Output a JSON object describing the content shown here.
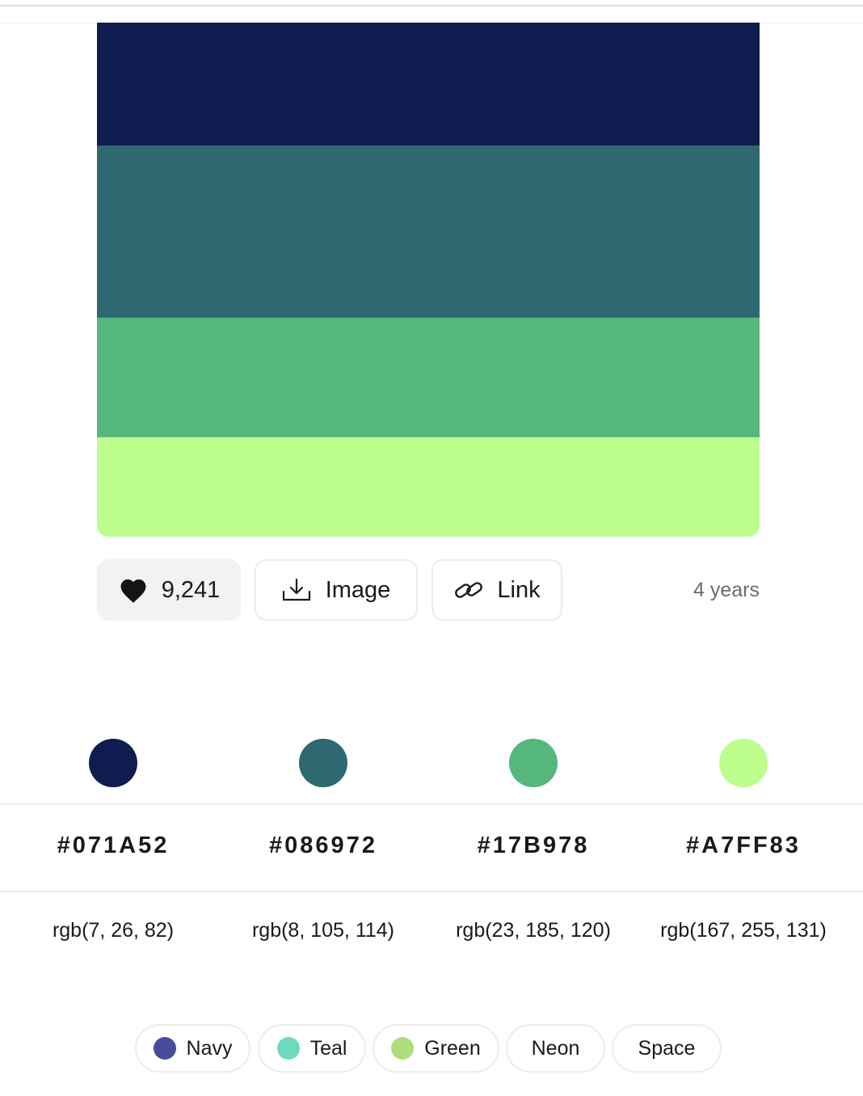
{
  "palette": {
    "colors": [
      {
        "hex": "#071A52",
        "rgb": "rgb(7, 26, 82)",
        "fill": "#0F1C4F"
      },
      {
        "hex": "#086972",
        "rgb": "rgb(8, 105, 114)",
        "fill": "#2E6870"
      },
      {
        "hex": "#17B978",
        "rgb": "rgb(23, 185, 120)",
        "fill": "#56B77C"
      },
      {
        "hex": "#A7FF83",
        "rgb": "rgb(167, 255, 131)",
        "fill": "#BCFD8E"
      }
    ]
  },
  "actions": {
    "likes": "9,241",
    "like_icon": "heart-icon",
    "image_label": "Image",
    "image_icon": "download-icon",
    "link_label": "Link",
    "link_icon": "link-icon",
    "age": "4 years"
  },
  "tags": [
    {
      "label": "Navy",
      "dot_color": "#474D9A"
    },
    {
      "label": "Teal",
      "dot_color": "#6FD9BE"
    },
    {
      "label": "Green",
      "dot_color": "#ADDE7A"
    },
    {
      "label": "Neon",
      "dot_color": null
    },
    {
      "label": "Space",
      "dot_color": null
    }
  ]
}
